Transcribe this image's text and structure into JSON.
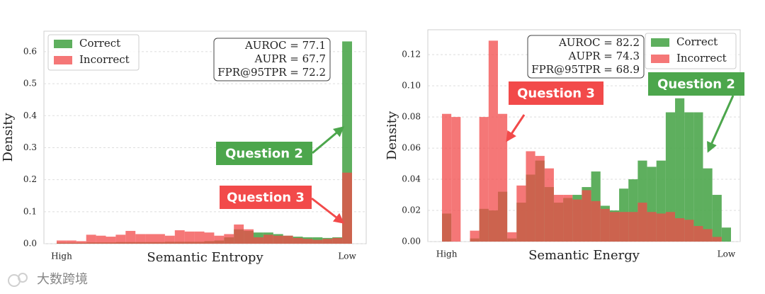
{
  "chart_data": [
    {
      "type": "bar",
      "xlabel": "Semantic Entropy",
      "ylabel": "Density",
      "categories": [
        "High",
        null,
        null,
        null,
        null,
        null,
        null,
        null,
        null,
        null,
        null,
        null,
        null,
        null,
        null,
        null,
        null,
        null,
        null,
        null,
        null,
        null,
        null,
        null,
        null,
        null,
        null,
        null,
        null,
        "Low"
      ],
      "series": [
        {
          "name": "Correct",
          "color": "#4ca64c",
          "values": [
            0.003,
            0.003,
            0.003,
            0.004,
            0.004,
            0.004,
            0.005,
            0.005,
            0.005,
            0.005,
            0.005,
            0.006,
            0.006,
            0.006,
            0.006,
            0.008,
            0.01,
            0.02,
            0.045,
            0.04,
            0.035,
            0.035,
            0.03,
            0.025,
            0.022,
            0.02,
            0.02,
            0.018,
            0.02,
            0.632
          ]
        },
        {
          "name": "Incorrect",
          "color": "#f24a4a",
          "values": [
            0.01,
            0.01,
            0.008,
            0.028,
            0.025,
            0.022,
            0.028,
            0.04,
            0.03,
            0.03,
            0.03,
            0.025,
            0.042,
            0.038,
            0.038,
            0.035,
            0.025,
            0.03,
            0.06,
            0.045,
            0.02,
            0.028,
            0.025,
            0.025,
            0.018,
            0.015,
            0.012,
            0.015,
            0.018,
            0.222
          ]
        }
      ],
      "ylim": [
        0,
        0.664
      ],
      "yticks": [
        {
          "value": 0,
          "label": "0.0"
        },
        0.1,
        0.2,
        0.3,
        0.4,
        0.5,
        0.6
      ],
      "grid": true,
      "legend": "upper left",
      "stats": [
        "AUROC = 77.1",
        "AUPR = 67.7",
        "FPR@95TPR = 72.2"
      ],
      "annotations": [
        "Question 2",
        "Question 3"
      ]
    },
    {
      "type": "bar",
      "xlabel": "Semantic Energy",
      "ylabel": "Density",
      "categories": [
        "High",
        null,
        null,
        null,
        null,
        null,
        null,
        null,
        null,
        null,
        null,
        null,
        null,
        null,
        null,
        null,
        null,
        null,
        null,
        null,
        null,
        null,
        null,
        null,
        null,
        null,
        null,
        null,
        null,
        null,
        "Low"
      ],
      "series": [
        {
          "name": "Correct",
          "color": "#4ca64c",
          "values": [
            0.018,
            0,
            0,
            0.002,
            0.021,
            0.02,
            0.032,
            0.002,
            0.025,
            0.043,
            0.052,
            0.035,
            0.025,
            0.028,
            0.03,
            0.035,
            0.045,
            0.023,
            0.02,
            0.034,
            0.04,
            0.052,
            0.048,
            0.052,
            0.083,
            0.092,
            0.083,
            0.083,
            0.047,
            0.03,
            0.009
          ]
        },
        {
          "name": "Incorrect",
          "color": "#f24a4a",
          "values": [
            0.082,
            0.08,
            0,
            0.007,
            0.08,
            0.129,
            0.082,
            0.006,
            0.036,
            0.058,
            0.055,
            0.047,
            0.03,
            0.03,
            0.027,
            0.033,
            0.026,
            0.021,
            0.019,
            0.019,
            0.019,
            0.025,
            0.019,
            0.018,
            0.019,
            0.015,
            0.014,
            0.01,
            0.008,
            0.003,
            0
          ]
        }
      ],
      "ylim": [
        0,
        0.136
      ],
      "yticks": [
        {
          "value": 0,
          "label": "0.00"
        },
        {
          "value": 0.02,
          "label": "0.02"
        },
        {
          "value": 0.04,
          "label": "0.04"
        },
        {
          "value": 0.06,
          "label": "0.06"
        },
        {
          "value": 0.08,
          "label": "0.08"
        },
        {
          "value": 0.1,
          "label": "0.10"
        },
        {
          "value": 0.12,
          "label": "0.12"
        }
      ],
      "grid": true,
      "legend": "upper right",
      "stats": [
        "AUROC = 82.2",
        "AUPR = 74.3",
        "FPR@95TPR = 68.9"
      ],
      "annotations": [
        "Question 3",
        "Question 2"
      ]
    }
  ],
  "watermark": "大数跨境"
}
